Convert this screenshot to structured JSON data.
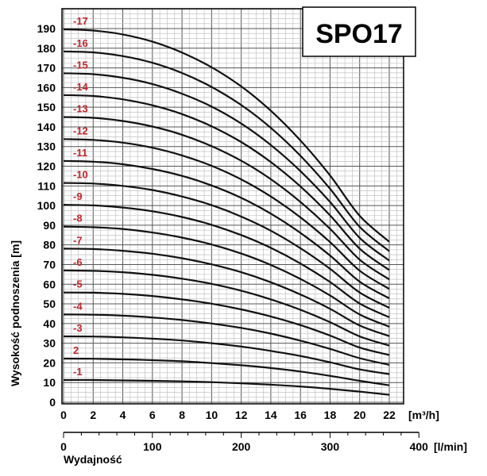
{
  "chart_data": {
    "type": "line",
    "title": "SPO17",
    "ylabel": "Wysokość podnoszenia [m]",
    "xlabel": "Wydajność",
    "x_unit": "[m³/h]",
    "x2_unit": "[l/min]",
    "xlim": [
      0,
      22
    ],
    "ylim": [
      0,
      195
    ],
    "x_ticks": [
      0,
      2,
      4,
      6,
      8,
      10,
      12,
      14,
      16,
      18,
      20,
      22
    ],
    "y_ticks": [
      0,
      10,
      20,
      30,
      40,
      50,
      60,
      70,
      80,
      90,
      100,
      110,
      120,
      130,
      140,
      150,
      160,
      170,
      180,
      190
    ],
    "x2_ticks": [
      0,
      100,
      200,
      300,
      400
    ],
    "grid": true,
    "x": [
      0,
      2,
      4,
      6,
      8,
      10,
      12,
      14,
      16,
      18,
      20,
      22
    ],
    "series": [
      {
        "name": "-1",
        "values": [
          11.3,
          11.3,
          11.1,
          10.9,
          10.6,
          10.2,
          9.6,
          8.9,
          8.0,
          6.8,
          5.4,
          3.8
        ]
      },
      {
        "name": "2",
        "values": [
          22.2,
          22.1,
          21.8,
          21.4,
          20.8,
          19.9,
          18.8,
          17.4,
          15.6,
          13.4,
          10.9,
          8.6
        ]
      },
      {
        "name": "-3",
        "values": [
          33.5,
          33.4,
          33.0,
          32.3,
          31.4,
          30.0,
          28.3,
          26.1,
          23.5,
          20.3,
          16.7,
          14.3
        ]
      },
      {
        "name": "-4",
        "values": [
          44.6,
          44.5,
          44.0,
          43.1,
          41.8,
          40.0,
          37.8,
          34.9,
          31.3,
          27.1,
          22.4,
          19.0
        ]
      },
      {
        "name": "-5",
        "values": [
          55.8,
          55.7,
          55.1,
          54.0,
          52.3,
          50.1,
          47.2,
          43.6,
          39.2,
          33.9,
          27.8,
          24.0
        ]
      },
      {
        "name": "-6",
        "values": [
          67.0,
          66.8,
          66.1,
          64.8,
          62.8,
          60.2,
          56.7,
          52.3,
          47.0,
          40.7,
          33.5,
          28.8
        ]
      },
      {
        "name": "-7",
        "values": [
          78.1,
          77.9,
          77.0,
          75.5,
          73.2,
          70.1,
          66.1,
          61.0,
          54.8,
          47.5,
          39.0,
          33.6
        ]
      },
      {
        "name": "-8",
        "values": [
          89.3,
          89.0,
          88.1,
          86.3,
          83.7,
          80.2,
          75.6,
          69.8,
          62.7,
          54.3,
          44.6,
          38.4
        ]
      },
      {
        "name": "-9",
        "values": [
          100.4,
          100.1,
          99.0,
          97.1,
          94.2,
          90.2,
          85.0,
          78.5,
          70.5,
          61.1,
          50.2,
          43.2
        ]
      },
      {
        "name": "-10",
        "values": [
          111.5,
          111.2,
          110.0,
          107.9,
          104.6,
          100.2,
          94.4,
          87.2,
          78.3,
          67.8,
          55.8,
          48.0
        ]
      },
      {
        "name": "-11",
        "values": [
          122.7,
          122.3,
          121.0,
          118.6,
          115.1,
          110.2,
          103.9,
          95.9,
          86.1,
          74.6,
          61.3,
          52.8
        ]
      },
      {
        "name": "-12",
        "values": [
          133.8,
          133.4,
          132.0,
          129.4,
          125.5,
          120.2,
          113.3,
          104.6,
          94.0,
          81.4,
          66.9,
          57.6
        ]
      },
      {
        "name": "-13",
        "values": [
          145.0,
          144.6,
          143.0,
          140.2,
          136.0,
          130.2,
          122.8,
          113.4,
          101.8,
          88.2,
          72.5,
          62.4
        ]
      },
      {
        "name": "-14",
        "values": [
          156.2,
          155.7,
          154.0,
          151.0,
          146.5,
          140.3,
          132.3,
          122.1,
          109.7,
          95.0,
          78.1,
          67.2
        ]
      },
      {
        "name": "-15",
        "values": [
          167.3,
          166.8,
          165.0,
          161.8,
          156.9,
          150.3,
          141.7,
          130.8,
          117.5,
          101.8,
          83.6,
          72.0
        ]
      },
      {
        "name": "-16",
        "values": [
          178.4,
          177.9,
          176.0,
          172.6,
          167.4,
          160.3,
          151.1,
          139.5,
          125.3,
          108.5,
          89.2,
          76.8
        ]
      },
      {
        "name": "-17",
        "values": [
          189.6,
          189.0,
          187.0,
          183.4,
          177.8,
          170.3,
          160.6,
          148.2,
          133.1,
          115.3,
          94.8,
          81.6
        ]
      }
    ]
  },
  "colors": {
    "curve": "#111111",
    "stage_label": "#c0262d",
    "grid_minor": "#b8b8b8",
    "grid_major": "#555555",
    "frame": "#000000"
  }
}
